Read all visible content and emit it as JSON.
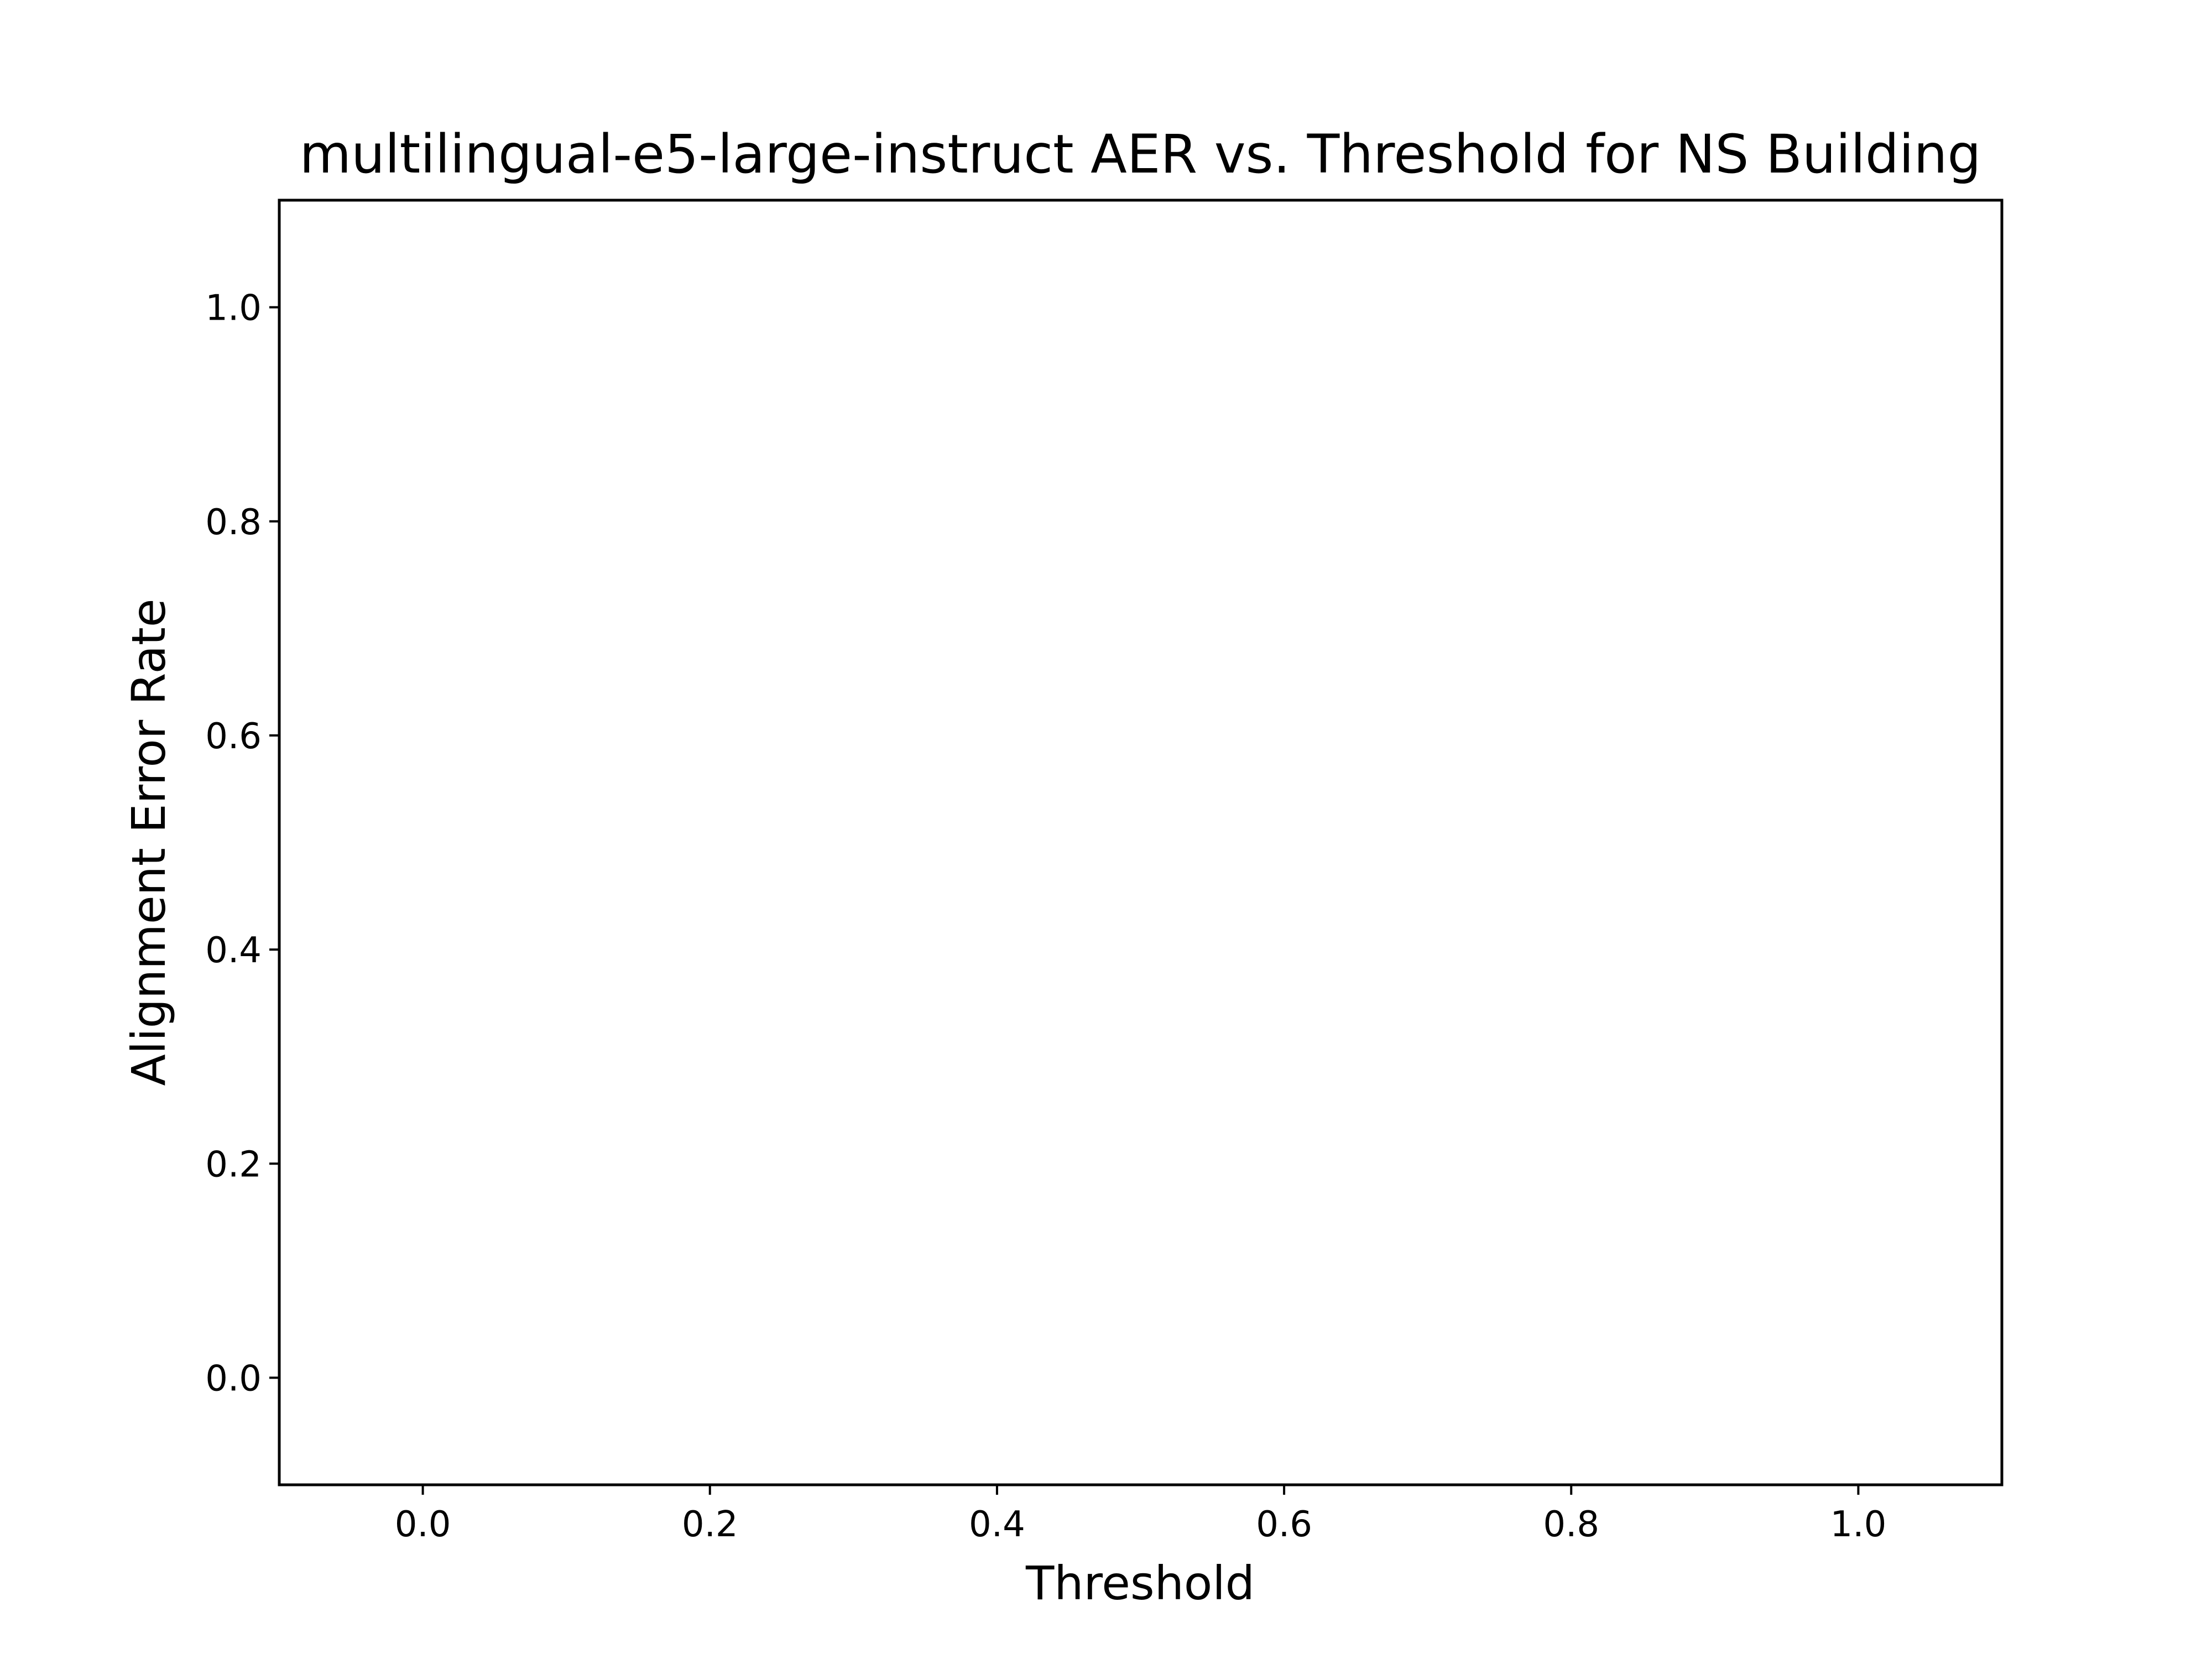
{
  "chart_data": {
    "type": "line",
    "title": "multilingual-e5-large-instruct AER vs. Threshold for NS Building",
    "xlabel": "Threshold",
    "ylabel": "Alignment Error Rate",
    "xlim": [
      -0.1,
      1.1
    ],
    "ylim": [
      -0.1,
      1.1
    ],
    "xticks": [
      0.0,
      0.2,
      0.4,
      0.6,
      0.8,
      1.0
    ],
    "yticks": [
      0.0,
      0.2,
      0.4,
      0.6,
      0.8,
      1.0
    ],
    "xtick_labels": [
      "0.0",
      "0.2",
      "0.4",
      "0.6",
      "0.8",
      "1.0"
    ],
    "ytick_labels": [
      "0.0",
      "0.2",
      "0.4",
      "0.6",
      "0.8",
      "1.0"
    ],
    "grid": false,
    "series": [],
    "colors": {
      "axes": "#000000",
      "background": "#ffffff"
    }
  }
}
